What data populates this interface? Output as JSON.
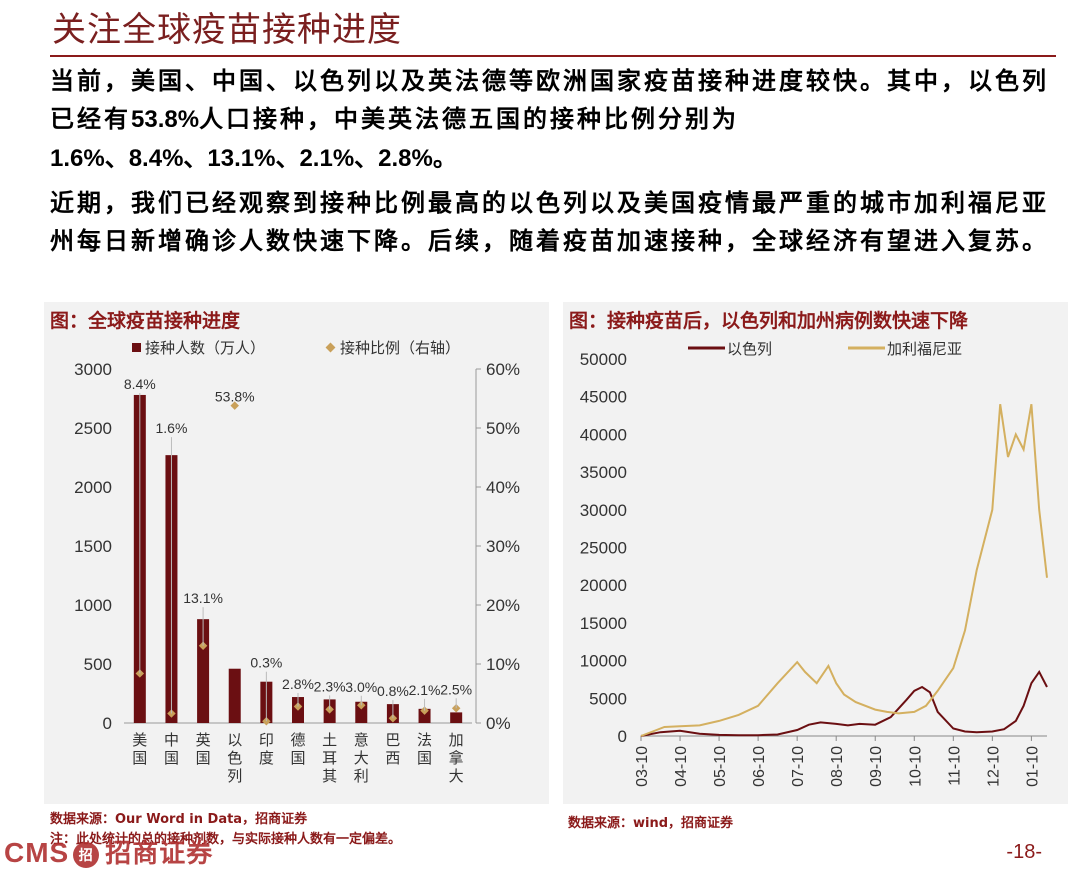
{
  "page": {
    "title": "关注全球疫苗接种进度",
    "para1_a": "当前，美国、中国、以色列以及英法德等欧洲国家疫苗接种进度较快。其中，以色列已经有",
    "para1_b": "53.8%",
    "para1_c": "人口接种，中美英法德五国的接种比例分别为",
    "para1_d": "1.6%、8.4%、13.1%、2.1%、2.8%",
    "para1_e": "。",
    "para2": "近期，我们已经观察到接种比例最高的以色列以及美国疫情最严重的城市加利福尼亚州每日新增确诊人数快速下降。后续，随着疫苗加速接种，全球经济有望进入复苏。",
    "page_number": "-18-",
    "logo_text": "CMS",
    "logo_badge": "招",
    "logo_cn": "招商证券"
  },
  "left_panel": {
    "title": "图：全球疫苗接种进度",
    "source": "数据来源：Our Word in Data，招商证券",
    "note": "注：此处统计的总的接种剂数，与实际接种人数有一定偏差。"
  },
  "right_panel": {
    "title": "图：接种疫苗后，以色列和加州病例数快速下降",
    "source": "数据来源：wind，招商证券"
  },
  "colors": {
    "bar": "#6b0f12",
    "marker": "#c9a05a",
    "israel": "#6b0f12",
    "california": "#d4b060",
    "accent": "#8b1a1a"
  },
  "chart_data": [
    {
      "type": "bar",
      "title": "",
      "legend": {
        "bar_label": "接种人数（万人）",
        "marker_label": "接种比例（右轴）",
        "placement": "top"
      },
      "categories": [
        "美国",
        "中国",
        "英国",
        "以色列",
        "印度",
        "德国",
        "土耳其",
        "意大利",
        "巴西",
        "法国",
        "加拿大"
      ],
      "series": [
        {
          "name": "接种人数（万人）",
          "values": [
            2780,
            2270,
            880,
            460,
            350,
            220,
            200,
            180,
            160,
            120,
            90
          ]
        },
        {
          "name": "接种比例（右轴）",
          "values": [
            8.4,
            1.6,
            13.1,
            53.8,
            0.3,
            2.8,
            2.3,
            3.0,
            0.8,
            2.1,
            2.5
          ]
        }
      ],
      "data_labels": [
        "8.4%",
        "1.6%",
        "13.1%",
        "53.8%",
        "0.3%",
        "2.8%",
        "2.3%",
        "3.0%",
        "0.8%",
        "2.1%",
        "2.5%"
      ],
      "ylim": [
        0,
        3000
      ],
      "y_ticks": [
        "0",
        "500",
        "1000",
        "1500",
        "2000",
        "2500",
        "3000"
      ],
      "y2lim": [
        0,
        60
      ],
      "y2_ticks": [
        "0%",
        "10%",
        "20%",
        "30%",
        "40%",
        "50%",
        "60%"
      ]
    },
    {
      "type": "line",
      "title": "",
      "x_ticks": [
        "03-10",
        "04-10",
        "05-10",
        "06-10",
        "07-10",
        "08-10",
        "09-10",
        "10-10",
        "11-10",
        "12-10",
        "01-10"
      ],
      "ylim": [
        0,
        50000
      ],
      "y_ticks": [
        "0",
        "5000",
        "10000",
        "15000",
        "20000",
        "25000",
        "30000",
        "35000",
        "40000",
        "45000",
        "50000"
      ],
      "legend_placement": "top",
      "series": [
        {
          "name": "以色列",
          "x": [
            0,
            0.5,
            1,
            1.5,
            2,
            2.5,
            3,
            3.5,
            4,
            4.3,
            4.6,
            5,
            5.3,
            5.6,
            6,
            6.4,
            6.8,
            7.0,
            7.2,
            7.4,
            7.6,
            8.0,
            8.3,
            8.6,
            9.0,
            9.3,
            9.6,
            9.8,
            10.0,
            10.2,
            10.4
          ],
          "y": [
            0,
            500,
            700,
            300,
            150,
            100,
            100,
            200,
            800,
            1500,
            1800,
            1600,
            1400,
            1600,
            1500,
            2500,
            4800,
            6000,
            6500,
            5800,
            3200,
            1000,
            600,
            500,
            600,
            900,
            2000,
            4000,
            7000,
            8500,
            6500
          ]
        },
        {
          "name": "加利福尼亚",
          "x": [
            0,
            0.3,
            0.6,
            1,
            1.5,
            2,
            2.5,
            3,
            3.5,
            4,
            4.2,
            4.5,
            4.8,
            5,
            5.2,
            5.5,
            6,
            6.3,
            6.6,
            7,
            7.3,
            7.6,
            8,
            8.3,
            8.6,
            9,
            9.2,
            9.4,
            9.6,
            9.8,
            10,
            10.2,
            10.4
          ],
          "y": [
            0,
            600,
            1200,
            1300,
            1400,
            2000,
            2800,
            4000,
            7000,
            9800,
            8500,
            7000,
            9300,
            7000,
            5500,
            4500,
            3500,
            3200,
            3000,
            3200,
            4000,
            6000,
            9000,
            14000,
            22000,
            30000,
            44000,
            37000,
            40000,
            38000,
            44000,
            30000,
            21000
          ]
        }
      ]
    }
  ]
}
